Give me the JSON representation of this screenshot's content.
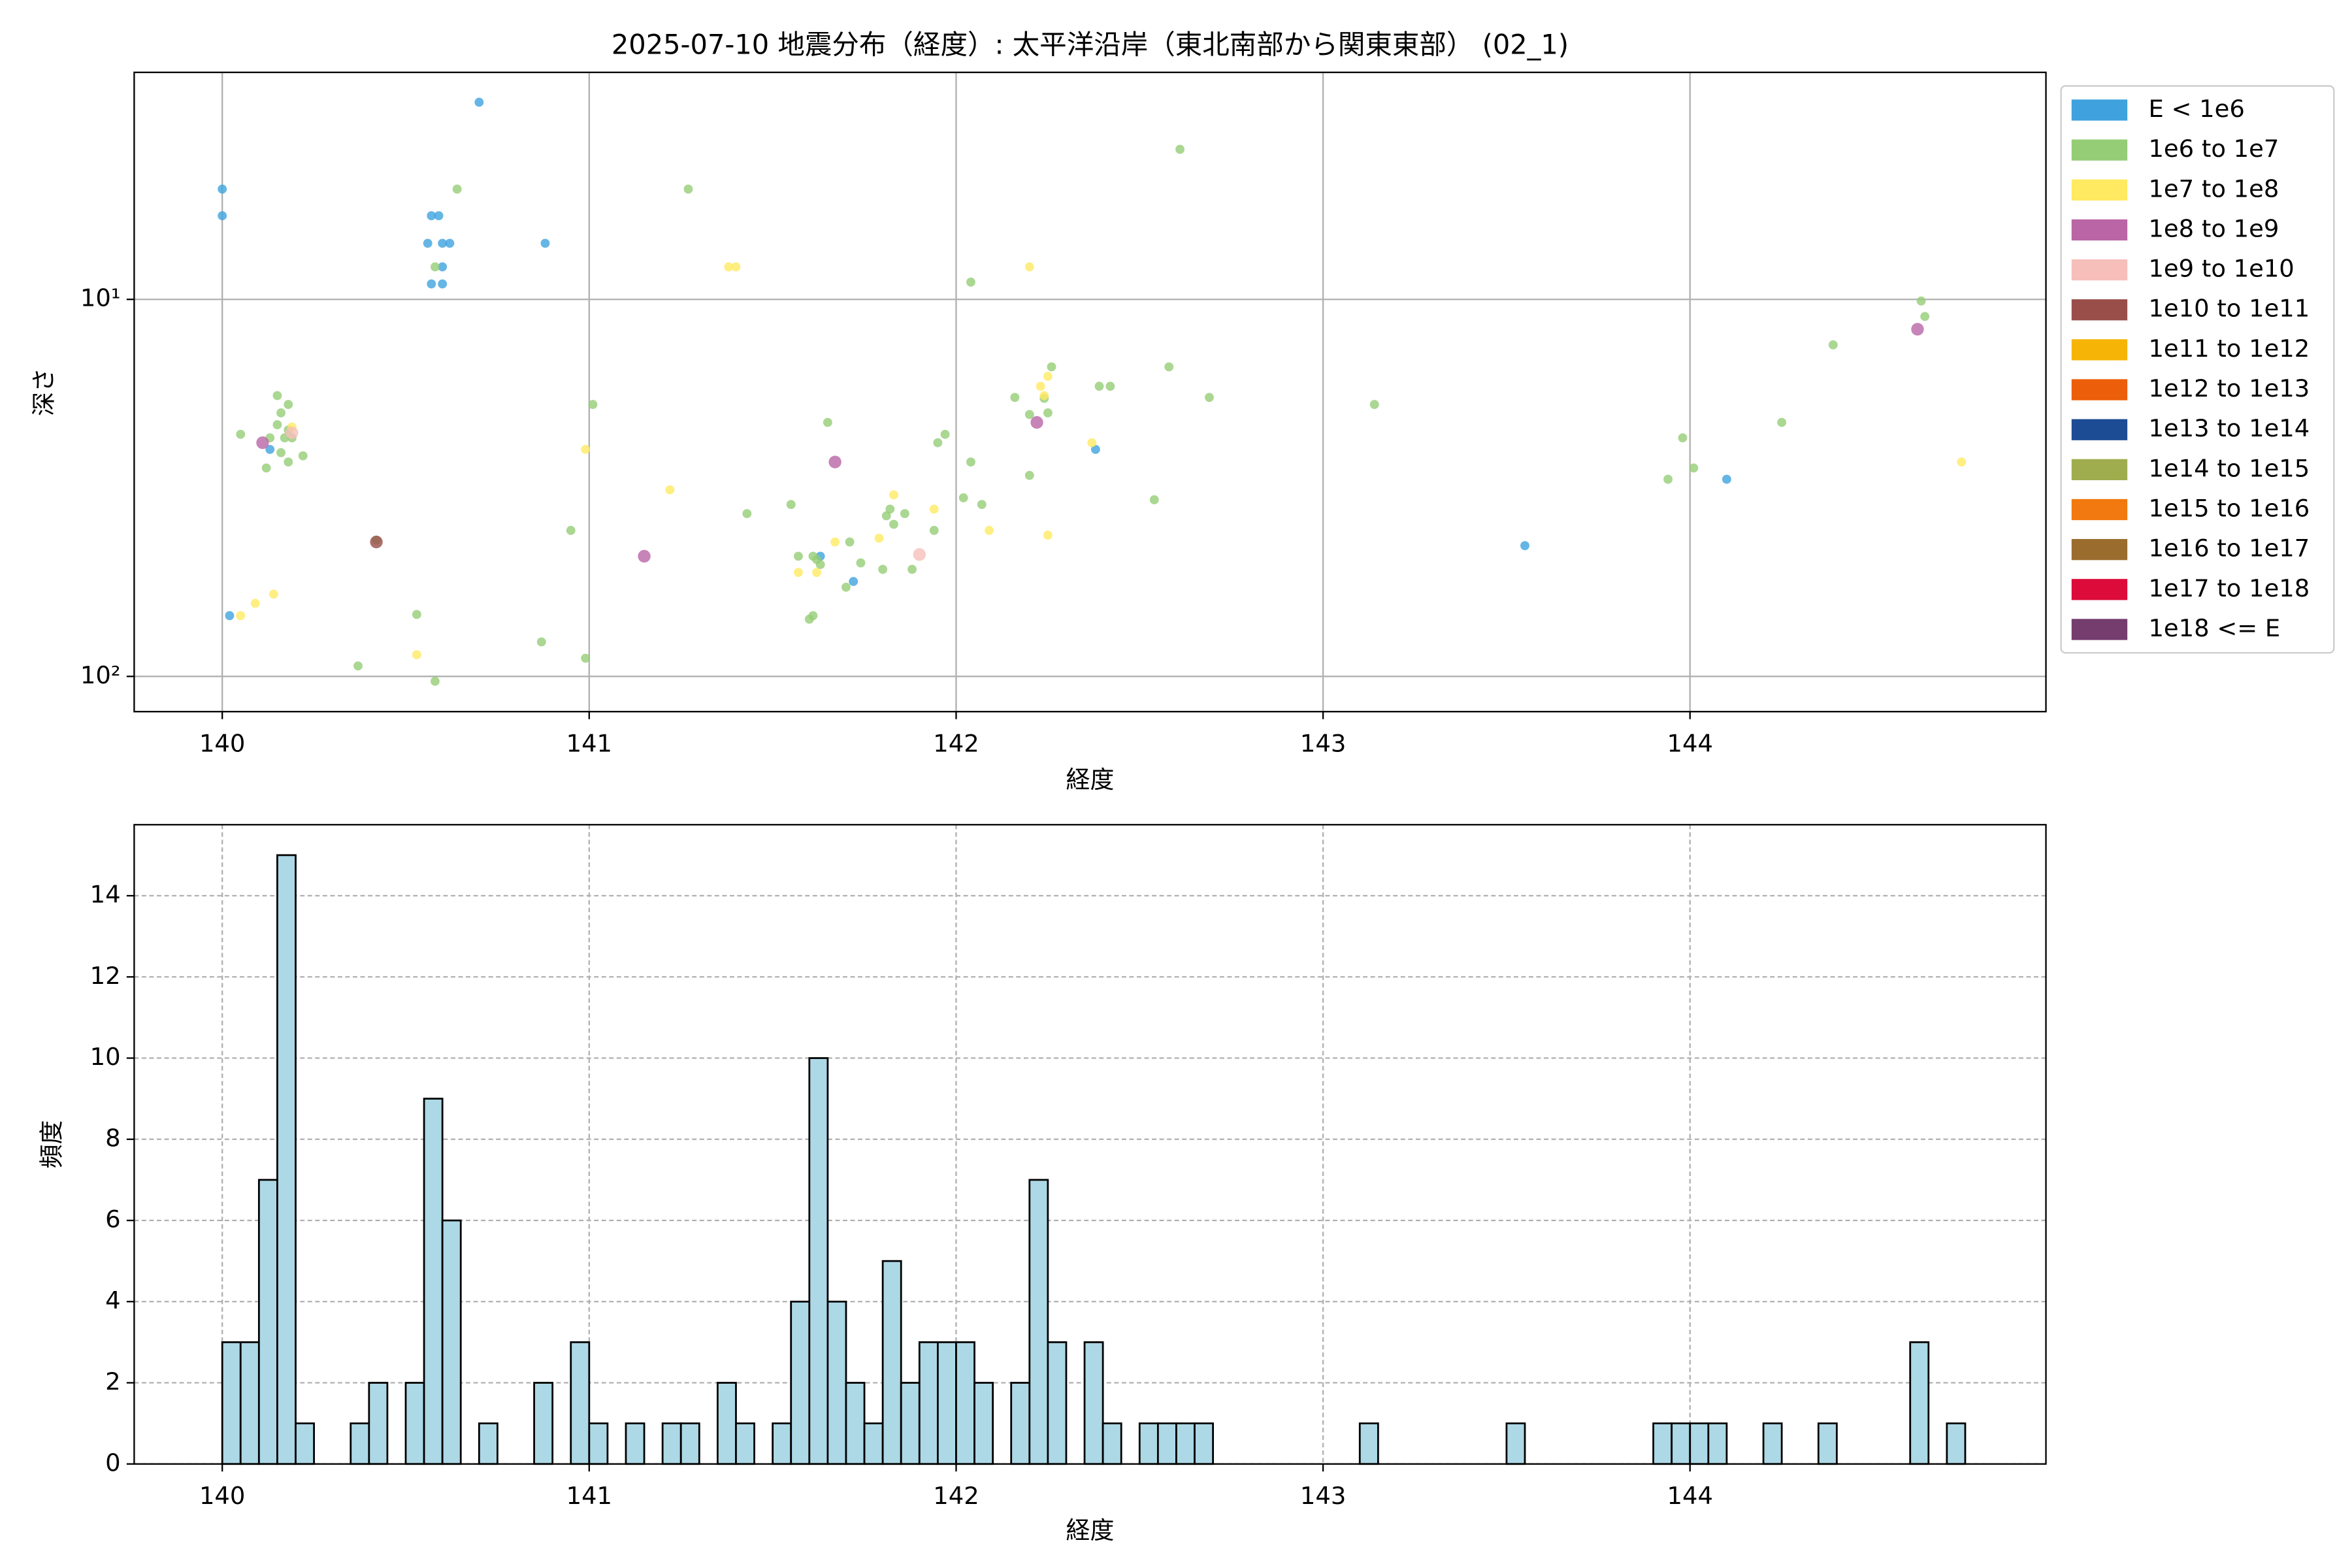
{
  "chart_data": [
    {
      "type": "scatter",
      "title": "2025-07-10 地震分布（経度）: 太平洋沿岸（東北南部から関東東部） (02_1)",
      "xlabel": "経度",
      "ylabel": "深さ",
      "xlim": [
        139.76,
        144.97
      ],
      "ylim": [
        124,
        2.5
      ],
      "log_y": true,
      "xticks": [
        140,
        141,
        142,
        143,
        144
      ],
      "yticks": [
        {
          "value": 10,
          "label": "10¹"
        },
        {
          "value": 100,
          "label": "10²"
        }
      ],
      "grid": true,
      "legend": "outside-right",
      "series": [
        {
          "name": "E < 1e6",
          "color": "#3fa2de",
          "x": [
            140.0,
            140.0,
            140.7,
            140.57,
            140.59,
            140.56,
            140.6,
            140.62,
            140.6,
            140.57,
            140.6,
            140.88,
            140.13,
            140.02,
            141.63,
            141.72,
            142.38,
            144.1,
            143.55
          ],
          "values": [
            5.1,
            6.0,
            3.0,
            6.0,
            6.0,
            7.1,
            7.1,
            7.1,
            8.2,
            9.1,
            9.1,
            7.1,
            25,
            69,
            48,
            56,
            25,
            30,
            45
          ]
        },
        {
          "name": "1e6 to 1e7",
          "color": "#95cd76",
          "x": [
            140.05,
            140.15,
            140.16,
            140.18,
            140.15,
            140.18,
            140.17,
            140.13,
            140.19,
            140.22,
            140.16,
            140.18,
            140.12,
            140.42,
            140.37,
            140.53,
            140.58,
            140.64,
            140.58,
            141.01,
            140.95,
            140.87,
            140.99,
            141.27,
            141.43,
            141.55,
            141.57,
            141.61,
            141.62,
            141.63,
            141.61,
            141.6,
            141.65,
            141.71,
            141.7,
            141.74,
            141.8,
            141.82,
            141.81,
            141.83,
            141.86,
            141.88,
            141.94,
            141.95,
            141.97,
            142.02,
            142.04,
            142.04,
            142.07,
            142.16,
            142.2,
            142.2,
            142.24,
            142.25,
            142.26,
            142.39,
            142.42,
            142.54,
            142.58,
            142.61,
            142.69,
            143.14,
            143.94,
            143.98,
            144.01,
            144.25,
            144.39,
            144.63,
            144.64
          ],
          "values": [
            22.8,
            18,
            20,
            19,
            21.5,
            22.2,
            23.3,
            23.3,
            23.3,
            26,
            25.5,
            27,
            28,
            43.5,
            93.8,
            68.5,
            103,
            5.1,
            8.2,
            19,
            41,
            81,
            89.5,
            5.1,
            37,
            35,
            48,
            48,
            49,
            50.5,
            69,
            70.5,
            21.2,
            44,
            58,
            50,
            52,
            36,
            37.5,
            39.5,
            37,
            52,
            41,
            24,
            22.8,
            33.6,
            27,
            9,
            35,
            18.2,
            29.3,
            20.2,
            18.3,
            20,
            15.1,
            17,
            17,
            34,
            15.1,
            4.0,
            18.2,
            19,
            30,
            23.3,
            28,
            21.2,
            13.2,
            10.1,
            11.1
          ]
        },
        {
          "name": "1e7 to 1e8",
          "color": "#ffea61",
          "x": [
            140.05,
            140.09,
            140.14,
            140.53,
            140.99,
            141.22,
            141.38,
            141.4,
            142.2,
            141.57,
            141.62,
            141.67,
            141.79,
            141.83,
            141.94,
            142.09,
            142.25,
            142.37,
            142.23,
            142.24,
            142.25,
            144.74,
            140.19
          ],
          "values": [
            69,
            64,
            60.5,
            87.6,
            25,
            32,
            8.2,
            8.2,
            8.2,
            53,
            53,
            44,
            43,
            33,
            36,
            41,
            42.2,
            24,
            17,
            18,
            16,
            27,
            21.8
          ]
        },
        {
          "name": "1e8 to 1e9",
          "color": "#b965a6",
          "x": [
            140.11,
            141.67,
            141.15,
            142.22,
            144.62
          ],
          "values": [
            24,
            27,
            48,
            21.2,
            12.0
          ]
        },
        {
          "name": "1e9 to 1e10",
          "color": "#f6bfba",
          "x": [
            141.9,
            140.19
          ],
          "values": [
            47.5,
            22.6
          ]
        },
        {
          "name": "1e10 to 1e11",
          "color": "#9a4e4a",
          "x": [
            140.42
          ],
          "values": [
            44
          ]
        },
        {
          "name": "1e11 to 1e12",
          "color": "#f6b506",
          "x": [],
          "values": []
        },
        {
          "name": "1e12 to 1e13",
          "color": "#ec5e0a",
          "x": [],
          "values": []
        },
        {
          "name": "1e13 to 1e14",
          "color": "#1c4c93",
          "x": [],
          "values": []
        },
        {
          "name": "1e14 to 1e15",
          "color": "#9fad4e",
          "x": [],
          "values": []
        },
        {
          "name": "1e15 to 1e16",
          "color": "#f1790f",
          "x": [],
          "values": []
        },
        {
          "name": "1e16 to 1e17",
          "color": "#9a6d2f",
          "x": [],
          "values": []
        },
        {
          "name": "1e17 to 1e18",
          "color": "#dc0b3a",
          "x": [],
          "values": []
        },
        {
          "name": "1e18 <= E",
          "color": "#743d6e",
          "x": [],
          "values": []
        }
      ]
    },
    {
      "type": "histogram",
      "xlabel": "経度",
      "ylabel": "頻度",
      "xlim": [
        139.76,
        144.97
      ],
      "ylim": [
        0,
        15.75
      ],
      "xticks": [
        140,
        141,
        142,
        143,
        144
      ],
      "yticks": [
        0,
        2,
        4,
        6,
        8,
        10,
        12,
        14
      ],
      "grid": true,
      "color": "#add8e6",
      "edgecolor": "#000000",
      "bins": [
        140,
        140.05,
        140.1,
        140.15,
        140.2,
        140.25,
        140.3,
        140.35,
        140.4,
        140.45,
        140.5,
        140.55,
        140.6,
        140.65,
        140.7,
        140.75,
        140.8,
        140.85,
        140.9,
        140.95,
        141,
        141.05,
        141.1,
        141.15,
        141.2,
        141.25,
        141.3,
        141.35,
        141.4,
        141.45,
        141.5,
        141.55,
        141.6,
        141.65,
        141.7,
        141.75,
        141.8,
        141.85,
        141.9,
        141.95,
        142,
        142.05,
        142.1,
        142.15,
        142.2,
        142.25,
        142.3,
        142.35,
        142.4,
        142.45,
        142.5,
        142.55,
        142.6,
        142.65,
        142.7,
        142.75,
        142.8,
        142.85,
        142.9,
        142.95,
        143,
        143.05,
        143.1,
        143.15,
        143.2,
        143.25,
        143.3,
        143.35,
        143.4,
        143.45,
        143.5,
        143.55,
        143.6,
        143.65,
        143.7,
        143.75,
        143.8,
        143.85,
        143.9,
        143.95,
        144,
        144.05,
        144.1,
        144.15,
        144.2,
        144.25,
        144.3,
        144.35,
        144.4,
        144.45,
        144.5,
        144.55,
        144.6,
        144.65,
        144.7,
        144.75
      ],
      "counts": [
        3,
        3,
        7,
        15,
        1,
        0,
        0,
        1,
        2,
        0,
        2,
        9,
        6,
        0,
        1,
        0,
        0,
        2,
        0,
        3,
        1,
        0,
        1,
        0,
        1,
        1,
        0,
        2,
        1,
        0,
        1,
        4,
        10,
        4,
        2,
        1,
        5,
        2,
        3,
        3,
        3,
        2,
        0,
        2,
        7,
        3,
        0,
        3,
        1,
        0,
        1,
        1,
        1,
        1,
        0,
        0,
        0,
        0,
        0,
        0,
        0,
        0,
        1,
        0,
        0,
        0,
        0,
        0,
        0,
        0,
        1,
        0,
        0,
        0,
        0,
        0,
        0,
        0,
        1,
        1,
        1,
        1,
        0,
        0,
        1,
        0,
        0,
        1,
        0,
        0,
        0,
        0,
        3,
        0,
        1
      ]
    }
  ]
}
